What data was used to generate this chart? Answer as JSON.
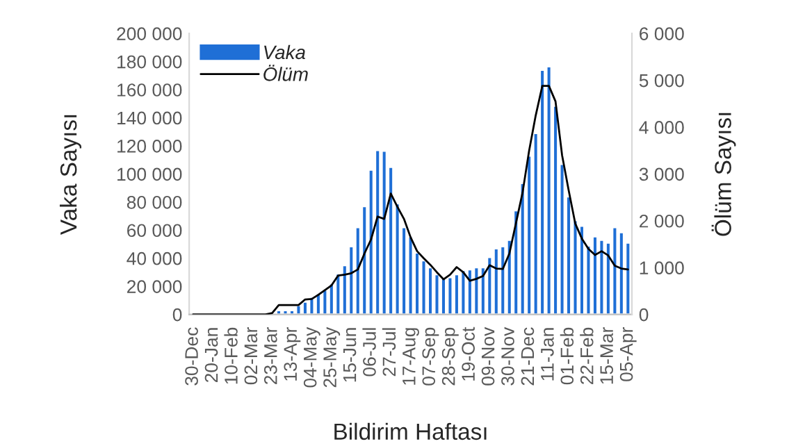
{
  "chart_data": {
    "type": "bar",
    "xlabel": "Bildirim Haftası",
    "ylabel": "Vaka Sayısı",
    "y2label": "Ölüm Sayısı",
    "categories": [
      "30-Dec",
      null,
      null,
      "20-Jan",
      null,
      null,
      "10-Feb",
      null,
      null,
      "02-Mar",
      null,
      null,
      "23-Mar",
      null,
      null,
      "13-Apr",
      null,
      null,
      "04-May",
      null,
      null,
      "25-May",
      null,
      null,
      "15-Jun",
      null,
      null,
      "06-Jul",
      null,
      null,
      "27-Jul",
      null,
      null,
      "17-Aug",
      null,
      null,
      "07-Sep",
      null,
      null,
      "28-Sep",
      null,
      null,
      "19-Oct",
      null,
      null,
      "09-Nov",
      null,
      null,
      "30-Nov",
      null,
      null,
      "21-Dec",
      null,
      null,
      "11-Jan",
      null,
      null,
      "01-Feb",
      null,
      null,
      "22-Feb",
      null,
      null,
      "15-Mar",
      null,
      null,
      "05-Apr"
    ],
    "series": [
      {
        "name": "Vaka",
        "color": "#1f6fd6",
        "values": [
          null,
          null,
          null,
          null,
          null,
          null,
          null,
          null,
          null,
          null,
          null,
          null,
          null,
          3000,
          3000,
          3000,
          6500,
          9000,
          12500,
          15000,
          17500,
          22000,
          29000,
          35000,
          48500,
          62000,
          77000,
          103000,
          117000,
          116500,
          105000,
          79000,
          62000,
          55500,
          44000,
          38500,
          33500,
          28500,
          26500,
          26500,
          28500,
          31500,
          32000,
          33500,
          33500,
          40800,
          47000,
          48500,
          53000,
          74000,
          93500,
          113000,
          129000,
          174000,
          176500,
          148500,
          107000,
          84000,
          67000,
          63000,
          49000,
          55500,
          53000,
          51000,
          62000,
          58500,
          51000
        ]
      },
      {
        "name": "Ölüm",
        "type": "line",
        "axis": "y2",
        "color": "#000000",
        "values": [
          0,
          0,
          0,
          0,
          0,
          0,
          0,
          0,
          0,
          0,
          0,
          0,
          30,
          200,
          200,
          200,
          200,
          320,
          330,
          420,
          520,
          620,
          830,
          850,
          880,
          960,
          1300,
          1600,
          2090,
          2040,
          2580,
          2300,
          2040,
          1650,
          1350,
          1200,
          1060,
          900,
          750,
          850,
          1010,
          900,
          720,
          760,
          820,
          1050,
          980,
          970,
          1300,
          1950,
          2600,
          3500,
          4250,
          4880,
          4880,
          4550,
          3400,
          2650,
          1940,
          1620,
          1400,
          1270,
          1350,
          1260,
          1040,
          980,
          960
        ]
      }
    ],
    "ylim": [
      0,
      200000
    ],
    "yticks": [
      0,
      {
        "value": 20000,
        "label": "20 000"
      },
      {
        "value": 40000,
        "label": "40 000"
      },
      {
        "value": 60000,
        "label": "60 000"
      },
      {
        "value": 80000,
        "label": "80 000"
      },
      {
        "value": 100000,
        "label": "100 000"
      },
      {
        "value": 120000,
        "label": "120 000"
      },
      {
        "value": 140000,
        "label": "140 000"
      },
      {
        "value": 160000,
        "label": "160 000"
      },
      {
        "value": 180000,
        "label": "180 000"
      },
      {
        "value": 200000,
        "label": "200 000"
      }
    ],
    "y2lim": [
      0,
      6000
    ],
    "y2ticks": [
      0,
      {
        "value": 1000,
        "label": "1 000"
      },
      {
        "value": 2000,
        "label": "2 000"
      },
      {
        "value": 3000,
        "label": "3 000"
      },
      {
        "value": 4000,
        "label": "4 000"
      },
      {
        "value": 5000,
        "label": "5 000"
      },
      {
        "value": 6000,
        "label": "6 000"
      }
    ],
    "legend": "top left",
    "grid": false
  }
}
